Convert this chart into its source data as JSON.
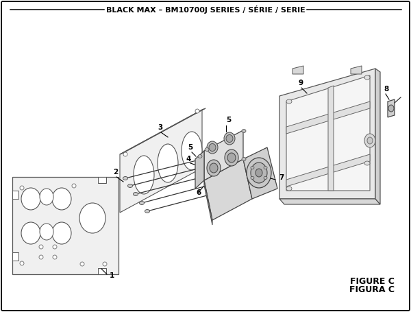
{
  "title": "BLACK MAX – BM10700J SERIES / SÉRIE / SERIE",
  "figure_c": "FIGURE C",
  "figura_c": "FIGURA C",
  "bg_color": "#ffffff",
  "border_color": "#000000"
}
